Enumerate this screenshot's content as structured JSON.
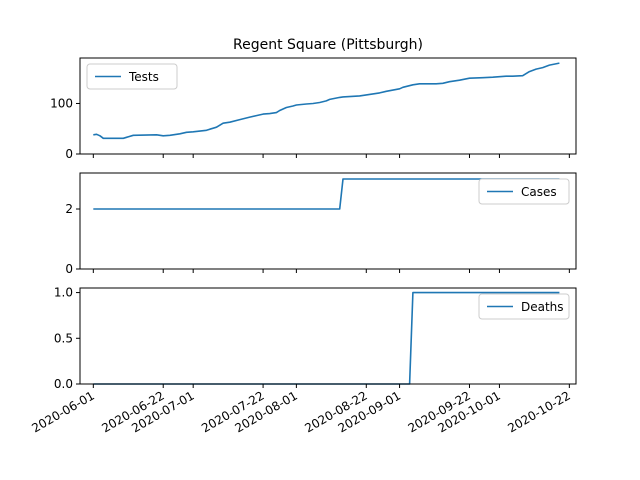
{
  "chart_data": {
    "type": "line",
    "title": "Regent Square (Pittsburgh)",
    "x_ticks": [
      "2020-06-01",
      "2020-06-22",
      "2020-07-01",
      "2020-07-22",
      "2020-08-01",
      "2020-08-22",
      "2020-09-01",
      "2020-09-22",
      "2020-10-01",
      "2020-10-22"
    ],
    "xlim": [
      "2020-05-28",
      "2020-10-24"
    ],
    "colors": {
      "series": "#1f77b4"
    },
    "panels": [
      {
        "name": "Tests",
        "legend": "upper-left",
        "ylim": [
          0,
          190
        ],
        "y_ticks": [
          {
            "value": 0,
            "label": "0"
          },
          {
            "value": 100,
            "label": "100"
          }
        ],
        "x": [
          "2020-06-01",
          "2020-06-02",
          "2020-06-03",
          "2020-06-04",
          "2020-06-10",
          "2020-06-11",
          "2020-06-13",
          "2020-06-20",
          "2020-06-22",
          "2020-06-24",
          "2020-06-27",
          "2020-06-29",
          "2020-07-01",
          "2020-07-05",
          "2020-07-06",
          "2020-07-08",
          "2020-07-10",
          "2020-07-12",
          "2020-07-15",
          "2020-07-18",
          "2020-07-20",
          "2020-07-22",
          "2020-07-24",
          "2020-07-26",
          "2020-07-27",
          "2020-07-29",
          "2020-07-31",
          "2020-08-01",
          "2020-08-04",
          "2020-08-06",
          "2020-08-08",
          "2020-08-10",
          "2020-08-11",
          "2020-08-14",
          "2020-08-15",
          "2020-08-20",
          "2020-08-22",
          "2020-08-26",
          "2020-08-28",
          "2020-09-01",
          "2020-09-02",
          "2020-09-05",
          "2020-09-07",
          "2020-09-09",
          "2020-09-12",
          "2020-09-14",
          "2020-09-16",
          "2020-09-19",
          "2020-09-22",
          "2020-09-26",
          "2020-09-29",
          "2020-10-01",
          "2020-10-03",
          "2020-10-05",
          "2020-10-08",
          "2020-10-10",
          "2020-10-12",
          "2020-10-14",
          "2020-10-16",
          "2020-10-19"
        ],
        "values": [
          38,
          39,
          36,
          31,
          31,
          33,
          37,
          38,
          36,
          37,
          40,
          43,
          44,
          47,
          49,
          53,
          61,
          63,
          68,
          73,
          76,
          79,
          80,
          82,
          86,
          92,
          95,
          97,
          99,
          100,
          102,
          105,
          108,
          112,
          113,
          115,
          117,
          121,
          124,
          129,
          132,
          137,
          139,
          139,
          139,
          140,
          143,
          146,
          150,
          151,
          152,
          153,
          154,
          154,
          155,
          163,
          168,
          171,
          176,
          180
        ]
      },
      {
        "name": "Cases",
        "legend": "upper-right",
        "ylim": [
          0,
          3.2
        ],
        "y_ticks": [
          {
            "value": 0,
            "label": "0"
          },
          {
            "value": 2,
            "label": "2"
          }
        ],
        "x": [
          "2020-06-01",
          "2020-08-14",
          "2020-08-15",
          "2020-10-19"
        ],
        "values": [
          2,
          2,
          3,
          3
        ]
      },
      {
        "name": "Deaths",
        "legend": "upper-right",
        "ylim": [
          0,
          1.05
        ],
        "y_ticks": [
          {
            "value": 0,
            "label": "0.0"
          },
          {
            "value": 0.5,
            "label": "0.5"
          },
          {
            "value": 1,
            "label": "1.0"
          }
        ],
        "x": [
          "2020-06-01",
          "2020-09-04",
          "2020-09-05",
          "2020-10-19"
        ],
        "values": [
          0,
          0,
          1,
          1
        ]
      }
    ]
  }
}
